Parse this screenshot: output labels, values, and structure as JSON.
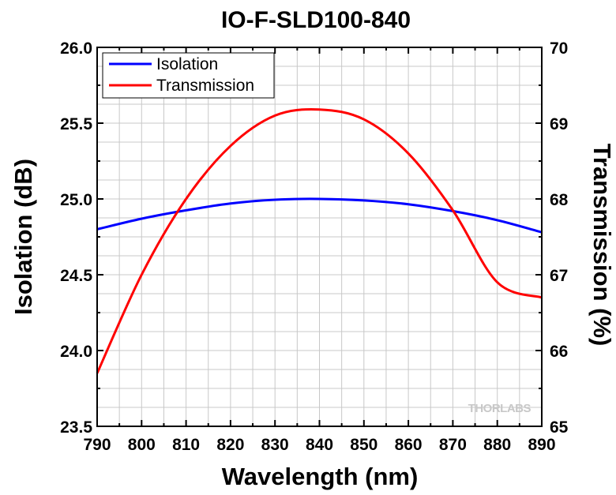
{
  "chart_data": {
    "type": "line",
    "title": "IO-F-SLD100-840",
    "xlabel": "Wavelength (nm)",
    "ylabel": "Isolation (dB)",
    "y2label": "Transmission (%)",
    "x_ticks": [
      790,
      800,
      810,
      820,
      830,
      840,
      850,
      860,
      870,
      880,
      890
    ],
    "x_tick_labels": [
      "790",
      "800",
      "810",
      "820",
      "830",
      "840",
      "850",
      "860",
      "870",
      "880",
      "890"
    ],
    "xlim": [
      790,
      890
    ],
    "ylim": [
      23.5,
      26.0
    ],
    "y_ticks": [
      23.5,
      24.0,
      24.5,
      25.0,
      25.5,
      26.0
    ],
    "y_tick_labels": [
      "23.5",
      "24.0",
      "24.5",
      "25.0",
      "25.5",
      "26.0"
    ],
    "y2lim": [
      65,
      70
    ],
    "y2_ticks": [
      65,
      66,
      67,
      68,
      69,
      70
    ],
    "y2_tick_labels": [
      "65",
      "66",
      "67",
      "68",
      "69",
      "70"
    ],
    "grid": true,
    "legend_position": "top-left",
    "series": [
      {
        "name": "Isolation",
        "axis": "left",
        "color": "#0000ff",
        "x": [
          790,
          800,
          810,
          820,
          830,
          840,
          850,
          860,
          870,
          880,
          890
        ],
        "values": [
          24.8,
          24.87,
          24.925,
          24.97,
          24.995,
          25.0,
          24.99,
          24.965,
          24.92,
          24.86,
          24.78
        ]
      },
      {
        "name": "Transmission",
        "axis": "right",
        "color": "#ff0000",
        "x": [
          790,
          800,
          810,
          820,
          830,
          840,
          850,
          860,
          870,
          880,
          890
        ],
        "values": [
          65.7,
          67.0,
          68.0,
          68.7,
          69.1,
          69.18,
          69.05,
          68.6,
          67.85,
          66.9,
          66.7
        ]
      }
    ]
  },
  "watermark": {
    "text": "THORLABS"
  }
}
